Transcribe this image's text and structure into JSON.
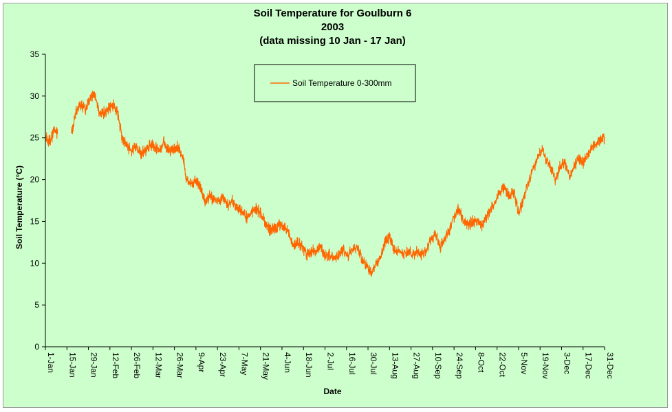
{
  "chart_data": {
    "type": "line",
    "title": "Soil Temperature for Goulburn 6",
    "subtitle": "2003",
    "note": "(data missing 10 Jan - 17 Jan)",
    "xlabel": "Date",
    "ylabel": "Soil Temperature (°C)",
    "ylim": [
      0,
      35
    ],
    "yticks": [
      0,
      5,
      10,
      15,
      20,
      25,
      30,
      35
    ],
    "xlim": [
      "2003-01-01",
      "2003-12-31"
    ],
    "xtick_labels": [
      "1-Jan",
      "15-Jan",
      "29-Jan",
      "12-Feb",
      "26-Feb",
      "12-Mar",
      "26-Mar",
      "9-Apr",
      "23-Apr",
      "7-May",
      "21-May",
      "4-Jun",
      "18-Jun",
      "2-Jul",
      "16-Jul",
      "30-Jul",
      "13-Aug",
      "27-Aug",
      "10-Sep",
      "24-Sep",
      "8-Oct",
      "22-Oct",
      "5-Nov",
      "19-Nov",
      "3-Dec",
      "17-Dec",
      "31-Dec"
    ],
    "grid": false,
    "legend_position": "top-center",
    "series": [
      {
        "name": "Soil Temperature  0-300mm",
        "color": "#ff6600",
        "x": [
          "2003-01-01",
          "2003-01-03",
          "2003-01-05",
          "2003-01-07",
          "2003-01-09",
          "2003-01-18",
          "2003-01-21",
          "2003-01-24",
          "2003-01-27",
          "2003-01-30",
          "2003-02-02",
          "2003-02-05",
          "2003-02-08",
          "2003-02-11",
          "2003-02-14",
          "2003-02-17",
          "2003-02-20",
          "2003-02-23",
          "2003-02-26",
          "2003-03-01",
          "2003-03-04",
          "2003-03-07",
          "2003-03-10",
          "2003-03-13",
          "2003-03-16",
          "2003-03-19",
          "2003-03-22",
          "2003-03-25",
          "2003-03-28",
          "2003-03-31",
          "2003-04-03",
          "2003-04-06",
          "2003-04-09",
          "2003-04-12",
          "2003-04-15",
          "2003-04-18",
          "2003-04-21",
          "2003-04-24",
          "2003-04-27",
          "2003-04-30",
          "2003-05-03",
          "2003-05-06",
          "2003-05-09",
          "2003-05-12",
          "2003-05-15",
          "2003-05-18",
          "2003-05-21",
          "2003-05-24",
          "2003-05-27",
          "2003-05-30",
          "2003-06-02",
          "2003-06-05",
          "2003-06-08",
          "2003-06-11",
          "2003-06-14",
          "2003-06-17",
          "2003-06-20",
          "2003-06-23",
          "2003-06-26",
          "2003-06-29",
          "2003-07-02",
          "2003-07-05",
          "2003-07-08",
          "2003-07-11",
          "2003-07-14",
          "2003-07-17",
          "2003-07-20",
          "2003-07-23",
          "2003-07-26",
          "2003-07-29",
          "2003-08-01",
          "2003-08-04",
          "2003-08-07",
          "2003-08-10",
          "2003-08-13",
          "2003-08-16",
          "2003-08-19",
          "2003-08-22",
          "2003-08-25",
          "2003-08-28",
          "2003-08-31",
          "2003-09-03",
          "2003-09-06",
          "2003-09-09",
          "2003-09-12",
          "2003-09-15",
          "2003-09-18",
          "2003-09-21",
          "2003-09-24",
          "2003-09-27",
          "2003-09-30",
          "2003-10-03",
          "2003-10-06",
          "2003-10-09",
          "2003-10-12",
          "2003-10-15",
          "2003-10-18",
          "2003-10-21",
          "2003-10-24",
          "2003-10-27",
          "2003-10-30",
          "2003-11-02",
          "2003-11-05",
          "2003-11-08",
          "2003-11-11",
          "2003-11-14",
          "2003-11-17",
          "2003-11-20",
          "2003-11-23",
          "2003-11-26",
          "2003-11-29",
          "2003-12-02",
          "2003-12-05",
          "2003-12-08",
          "2003-12-11",
          "2003-12-14",
          "2003-12-17",
          "2003-12-20",
          "2003-12-23",
          "2003-12-26",
          "2003-12-29",
          "2003-12-31"
        ],
        "y": [
          25.5,
          24.5,
          25.0,
          26.0,
          25.5,
          25.5,
          28.0,
          29.0,
          28.5,
          29.5,
          30.5,
          28.0,
          28.0,
          28.5,
          29.0,
          28.0,
          25.0,
          24.0,
          23.5,
          24.0,
          23.0,
          23.5,
          24.0,
          24.0,
          23.5,
          24.5,
          23.5,
          23.5,
          24.0,
          23.0,
          20.0,
          19.5,
          20.0,
          19.0,
          17.5,
          18.0,
          17.5,
          17.5,
          18.0,
          17.0,
          17.5,
          16.5,
          16.0,
          15.5,
          16.0,
          16.5,
          16.0,
          15.0,
          14.0,
          14.0,
          14.5,
          14.5,
          14.0,
          12.0,
          12.5,
          12.0,
          11.0,
          11.5,
          11.5,
          12.0,
          11.0,
          11.0,
          10.5,
          11.0,
          11.5,
          11.0,
          11.5,
          12.0,
          10.5,
          9.5,
          9.0,
          10.0,
          10.5,
          12.5,
          13.0,
          11.5,
          11.5,
          11.0,
          11.5,
          11.0,
          11.5,
          11.0,
          11.5,
          13.0,
          13.5,
          12.0,
          13.0,
          14.0,
          15.5,
          16.5,
          15.0,
          14.5,
          15.0,
          15.0,
          14.5,
          15.5,
          16.5,
          17.5,
          18.5,
          19.0,
          18.0,
          18.5,
          16.0,
          17.5,
          19.5,
          21.0,
          22.5,
          23.5,
          22.5,
          21.5,
          20.0,
          21.5,
          22.0,
          20.5,
          21.5,
          22.5,
          22.0,
          23.0,
          24.0,
          24.5,
          25.0,
          25.0
        ]
      }
    ]
  }
}
